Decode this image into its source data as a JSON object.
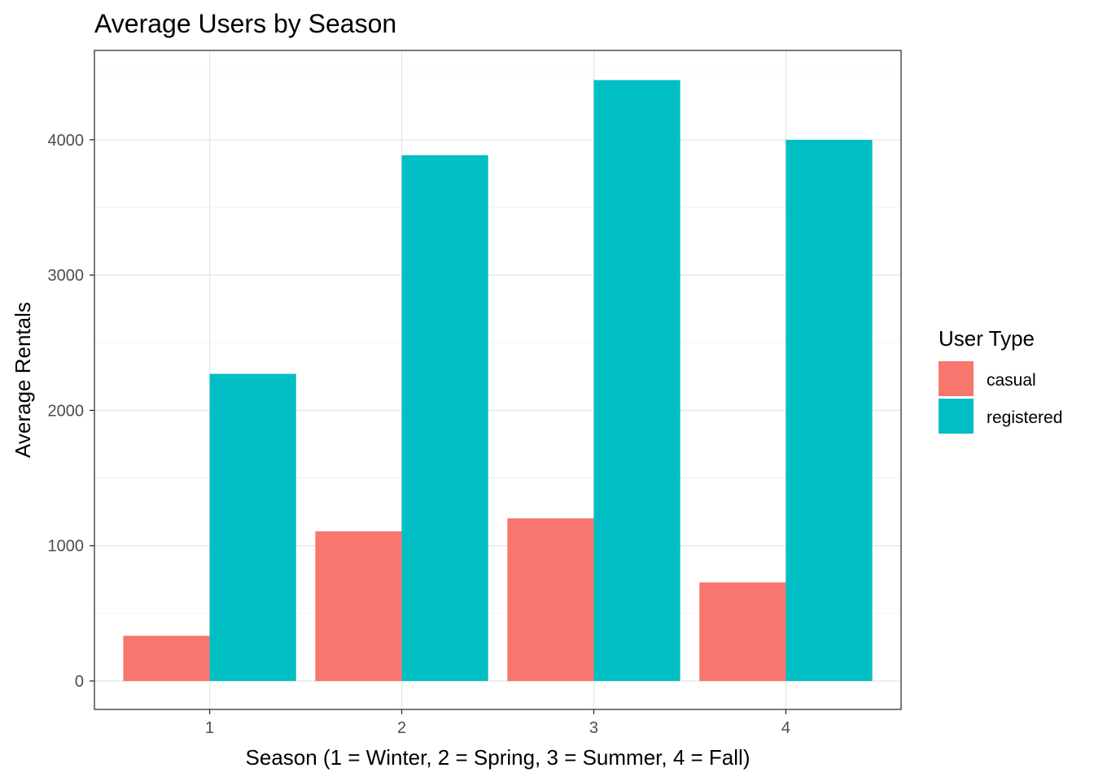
{
  "chart_data": {
    "type": "bar",
    "title": "Average Users by Season",
    "xlabel": "Season (1 = Winter, 2 = Spring, 3 = Summer, 4 = Fall)",
    "ylabel": "Average Rentals",
    "categories": [
      "1",
      "2",
      "3",
      "4"
    ],
    "series": [
      {
        "name": "casual",
        "color": "#F8766D",
        "values": [
          334,
          1106,
          1202,
          729
        ]
      },
      {
        "name": "registered",
        "color": "#00BFC4",
        "values": [
          2270,
          3886,
          4441,
          3999
        ]
      }
    ],
    "ylim": [
      -210,
      4660
    ],
    "yticks": [
      0,
      1000,
      2000,
      3000,
      4000
    ],
    "ytick_labels": [
      "0",
      "1000",
      "2000",
      "3000",
      "4000"
    ],
    "grid": true,
    "legend": {
      "title": "User Type",
      "placement": "right"
    }
  }
}
